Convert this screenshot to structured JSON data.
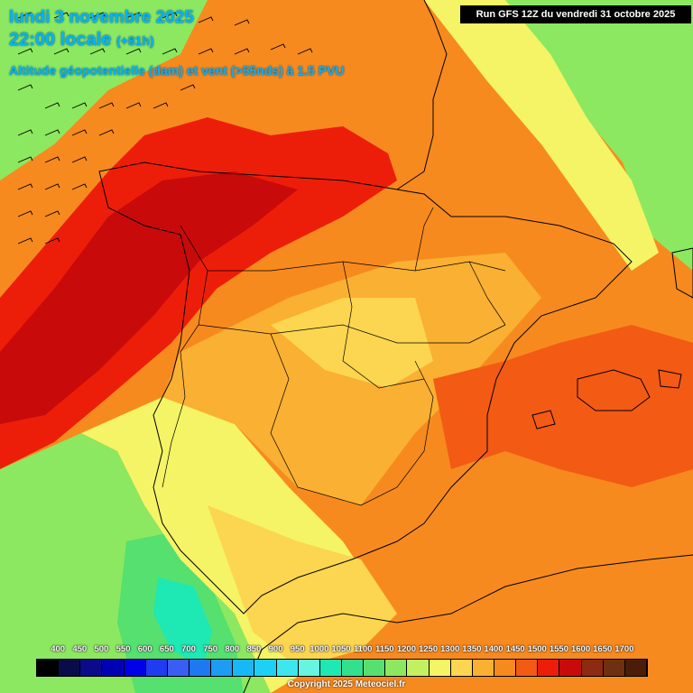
{
  "title": {
    "date_line": "lundi 3 novembre 2025",
    "time_line": "22:00 locale",
    "time_offset": "(+81h)",
    "field_line": "Altitude géopotentielle (dam) et vent (>55nds) à 1.5 PVU"
  },
  "run_info": "Run GFS 12Z du vendredi 31 octobre 2025",
  "legend": {
    "labels": [
      "400",
      "450",
      "500",
      "550",
      "600",
      "650",
      "700",
      "750",
      "800",
      "850",
      "900",
      "950",
      "1000",
      "1050",
      "1100",
      "1150",
      "1200",
      "1250",
      "1300",
      "1350",
      "1400",
      "1450",
      "1500",
      "1550",
      "1600",
      "1650",
      "1700"
    ],
    "colors": [
      "#000000",
      "#0b0b4a",
      "#0a0a8a",
      "#0000b4",
      "#0000e8",
      "#1f3cf2",
      "#3a5ef4",
      "#1e78f0",
      "#1e9bf2",
      "#17b8f5",
      "#1ed0f5",
      "#40e6ee",
      "#66f5e0",
      "#1ee8b4",
      "#33e090",
      "#55e070",
      "#8ce860",
      "#c2f060",
      "#f4f466",
      "#fcd650",
      "#fab032",
      "#f78a1e",
      "#f35a14",
      "#ec1e0a",
      "#c80a0a",
      "#8c2a12",
      "#6e3010",
      "#4a1c0a"
    ]
  },
  "copyright": "Copyright 2025 Meteociel.fr",
  "map": {
    "field_colors": {
      "deep_red": "#c80a0a",
      "red": "#ec1e0a",
      "red_orange": "#f35a14",
      "orange": "#f78a1e",
      "light_orange": "#fab032",
      "yellow_orange": "#fcd650",
      "yellow": "#f4f466",
      "yellow_green": "#c2f060",
      "green": "#8ce860",
      "mid_green": "#55e070",
      "teal": "#1ee8b4",
      "cyan": "#66f5e0"
    },
    "wind_barbs": true
  }
}
